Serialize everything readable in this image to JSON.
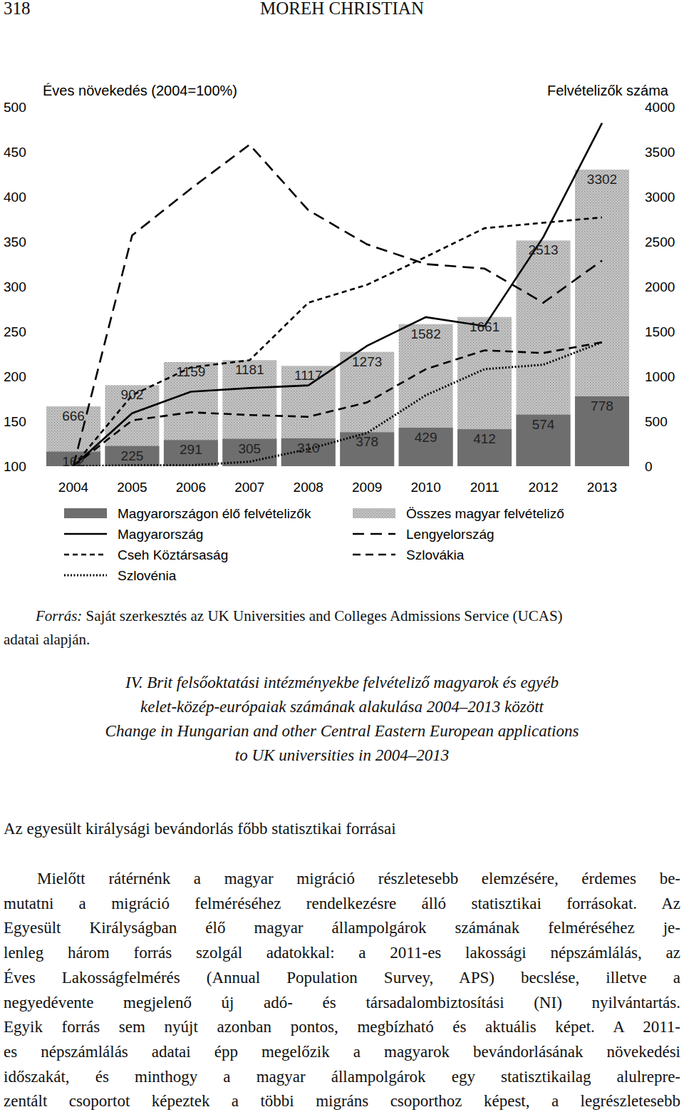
{
  "header": {
    "page": "318",
    "author": "MOREH CHRISTIAN"
  },
  "chart_data": {
    "type": "bar",
    "y_label": "Éves növekedés (2004=100%)",
    "y2_label": "Felvételizők száma",
    "categories": [
      "2004",
      "2005",
      "2006",
      "2007",
      "2008",
      "2009",
      "2010",
      "2011",
      "2012",
      "2013"
    ],
    "ylim": [
      100,
      500
    ],
    "yticks": [
      100,
      150,
      200,
      250,
      300,
      350,
      400,
      450,
      500
    ],
    "y2lim": [
      0,
      4000
    ],
    "y2ticks": [
      0,
      500,
      1000,
      1500,
      2000,
      2500,
      3000,
      3500,
      4000
    ],
    "grid": false,
    "stacked": false,
    "data_labels": true,
    "legend": "bottom",
    "series": [
      {
        "name": "Magyarországon élő felvételizők",
        "type": "bar",
        "axis": "y2",
        "color": "#6e6e6e",
        "values": [
          162,
          225,
          291,
          305,
          310,
          378,
          429,
          412,
          574,
          778
        ]
      },
      {
        "name": "Összes magyar felvételiző",
        "type": "bar",
        "axis": "y2",
        "color": "#c4c4c4",
        "values": [
          666,
          902,
          1159,
          1181,
          1117,
          1273,
          1582,
          1661,
          2513,
          3302
        ]
      },
      {
        "name": "Magyarország",
        "type": "line",
        "color": "#000000",
        "line_style": "solid",
        "values": [
          100,
          159,
          183,
          187,
          190,
          234,
          266,
          256,
          355,
          482
        ]
      },
      {
        "name": "Lengyelország",
        "type": "line",
        "color": "#000000",
        "line_style": "longdash",
        "values": [
          100,
          357,
          409,
          458,
          385,
          347,
          325,
          320,
          282,
          329
        ]
      },
      {
        "name": "Cseh Köztársaság",
        "type": "line",
        "color": "#000000",
        "line_style": "dashed",
        "values": [
          100,
          179,
          210,
          218,
          282,
          302,
          333,
          365,
          371,
          377
        ]
      },
      {
        "name": "Szlovákia",
        "type": "line",
        "color": "#000000",
        "line_style": "mediumdash",
        "values": [
          100,
          151,
          160,
          157,
          155,
          171,
          208,
          229,
          226,
          238
        ]
      },
      {
        "name": "Szlovénia",
        "type": "line",
        "color": "#000000",
        "line_style": "dotted",
        "values": [
          100,
          101,
          101,
          105,
          119,
          137,
          179,
          208,
          213,
          238
        ]
      }
    ]
  },
  "source": {
    "label": "Forrás:",
    "lines": [
      "Saját szerkesztés az UK Universities and Colleges Admissions Service (UCAS)",
      "adatai alapján."
    ]
  },
  "caption": {
    "lines": [
      "IV. Brit felsőoktatási intézményekbe felvételiző magyarok és egyéb",
      "kelet-közép-európaiak számának alakulása 2004–2013 között",
      "Change in Hungarian and other Central Eastern European applications",
      "to UK universities in 2004–2013"
    ]
  },
  "section": {
    "title": "Az egyesült királysági bevándorlás főbb statisztikai forrásai"
  },
  "paragraph": {
    "lines": [
      "Mielőtt rátérnénk a magyar migráció részletesebb elemzésére, érdemes be-",
      "mutatni a migráció felméréséhez rendelkezésre álló statisztikai forrásokat. Az",
      "Egyesült Királyságban élő magyar állampolgárok számának felméréséhez je-",
      "lenleg három forrás szolgál adatokkal: a 2011-es lakossági népszámlálás, az",
      "Éves Lakosságfelmérés (Annual Population Survey, APS) becslése, illetve a",
      "negyedévente megjelenő új adó- és társadalombiztosítási (NI) nyilvántartás.",
      "Egyik forrás sem nyújt azonban pontos, megbízható és aktuális képet. A 2011-",
      "es népszámlálás adatai épp megelőzik a magyarok bevándorlásának növekedési",
      "időszakát, és minthogy a magyar állampolgárok egy statisztikailag alulrepre-",
      "zentált csoportot képeztek a többi migráns csoporthoz képest, a legrészletesebb"
    ]
  }
}
